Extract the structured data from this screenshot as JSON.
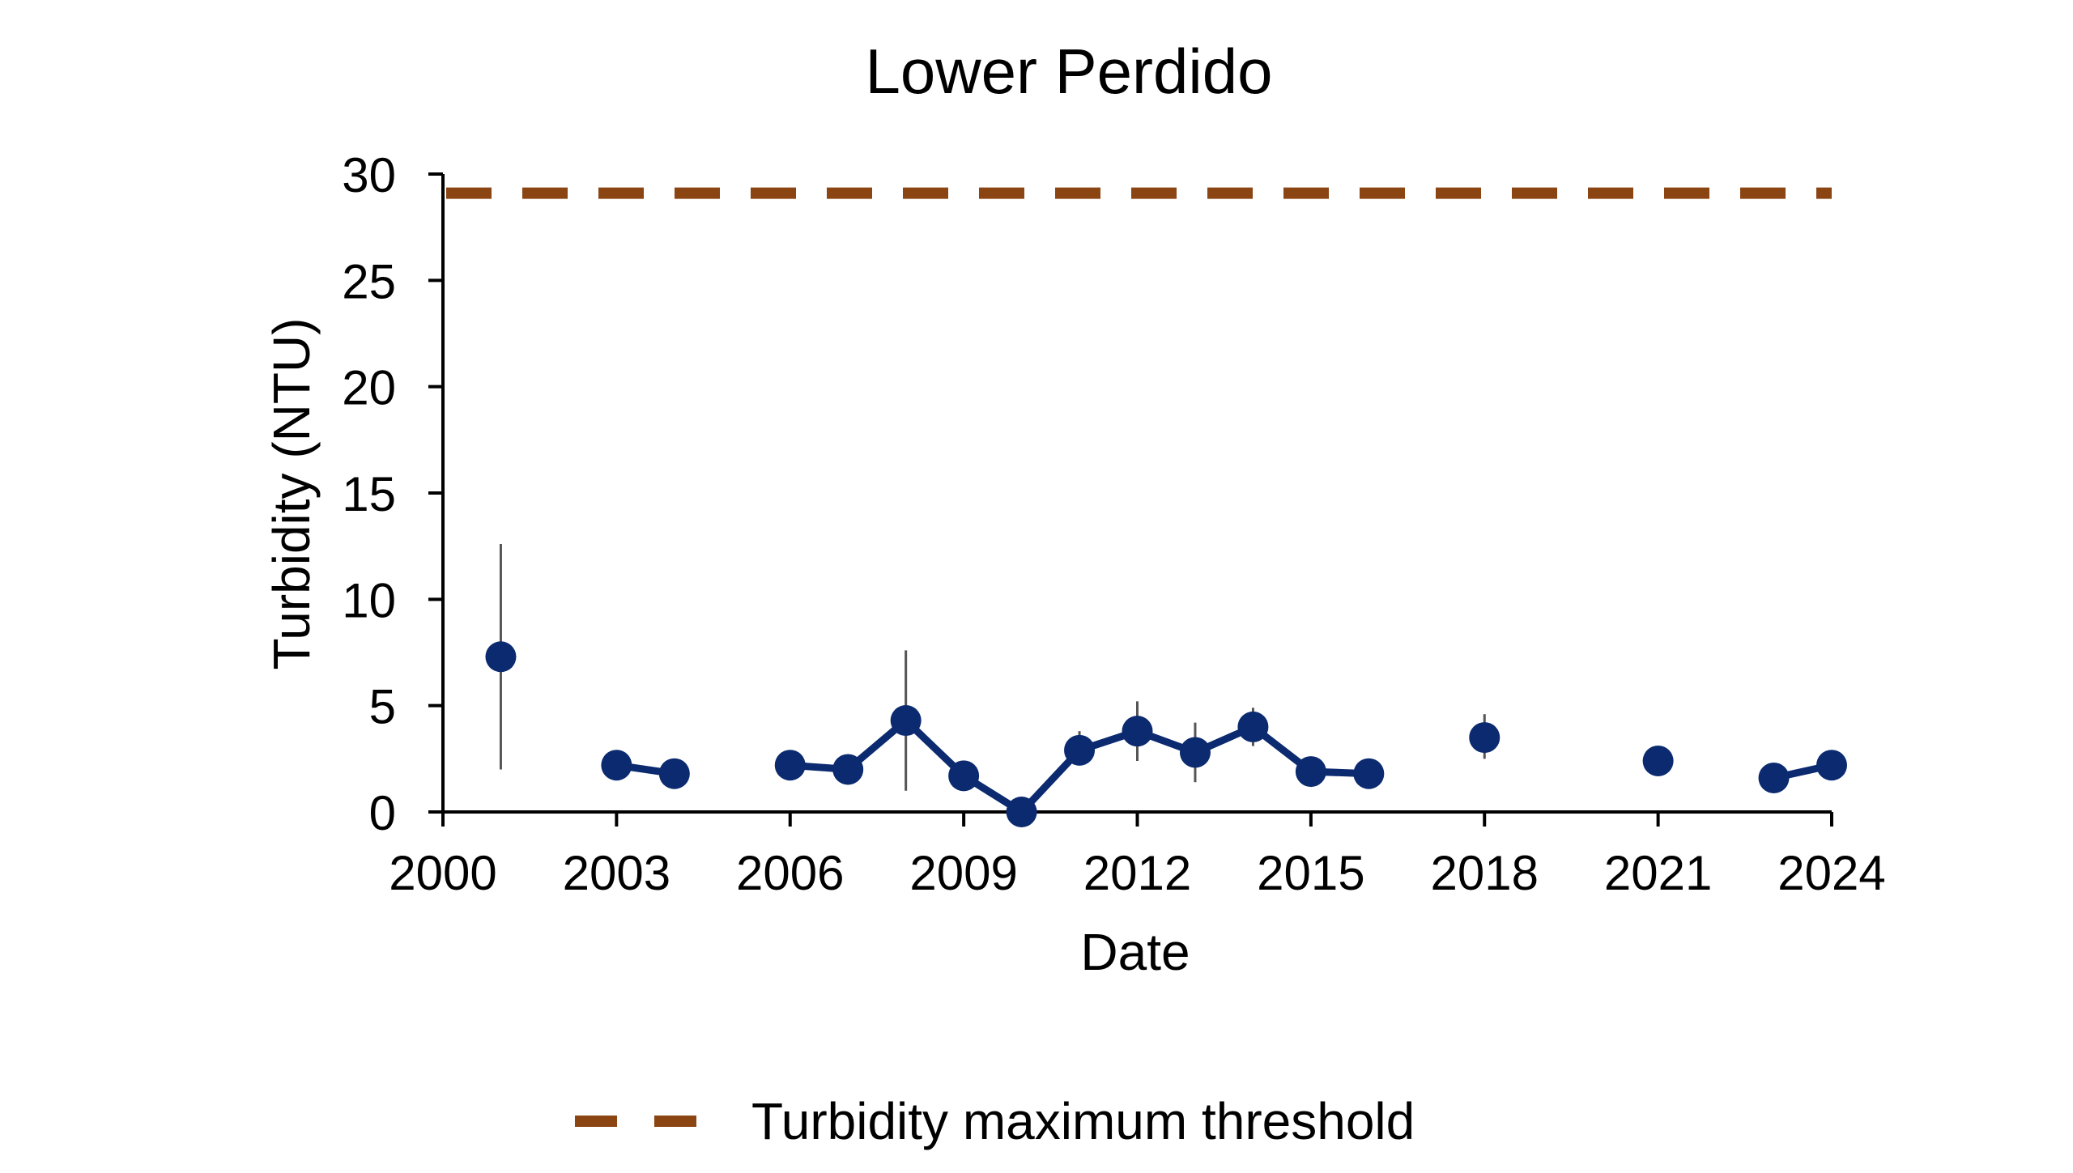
{
  "chart_data": {
    "type": "scatter",
    "title": "Lower Perdido",
    "xlabel": "Date",
    "ylabel": "Turbidity (NTU)",
    "xlim": [
      2000,
      2024
    ],
    "ylim": [
      0,
      30
    ],
    "xticks": [
      2000,
      2003,
      2006,
      2009,
      2012,
      2015,
      2018,
      2021,
      2024
    ],
    "yticks": [
      0,
      5,
      10,
      15,
      20,
      25,
      30
    ],
    "grid": false,
    "legend_position": "bottom",
    "series": [
      {
        "type": "line-markers",
        "color": "#0b2a6f",
        "points": [
          {
            "x": 2001,
            "y": 7.3,
            "err_low": 2.0,
            "err_high": 12.6
          },
          {
            "x": 2003,
            "y": 2.2
          },
          {
            "x": 2004,
            "y": 1.8
          },
          {
            "x": 2006,
            "y": 2.2
          },
          {
            "x": 2007,
            "y": 2.0
          },
          {
            "x": 2008,
            "y": 4.3,
            "err_low": 1.0,
            "err_high": 7.6
          },
          {
            "x": 2009,
            "y": 1.7
          },
          {
            "x": 2010,
            "y": 0.0
          },
          {
            "x": 2011,
            "y": 2.9,
            "err_low": 2.2,
            "err_high": 3.8
          },
          {
            "x": 2012,
            "y": 3.8,
            "err_low": 2.4,
            "err_high": 5.2
          },
          {
            "x": 2013,
            "y": 2.8,
            "err_low": 1.4,
            "err_high": 4.2
          },
          {
            "x": 2014,
            "y": 4.0,
            "err_low": 3.1,
            "err_high": 4.9
          },
          {
            "x": 2015,
            "y": 1.9
          },
          {
            "x": 2016,
            "y": 1.8
          },
          {
            "x": 2018,
            "y": 3.5,
            "err_low": 2.5,
            "err_high": 4.6
          },
          {
            "x": 2021,
            "y": 2.4
          },
          {
            "x": 2023,
            "y": 1.6
          },
          {
            "x": 2024,
            "y": 2.2
          }
        ],
        "segments": [
          [
            2003,
            2004
          ],
          [
            2006,
            2016
          ],
          [
            2023,
            2024
          ]
        ]
      },
      {
        "name": "Turbidity maximum threshold",
        "type": "threshold",
        "color": "#8b4513",
        "value": 29.1
      }
    ],
    "legend": [
      {
        "label": "Turbidity maximum threshold",
        "color": "#8b4513",
        "style": "dashed"
      }
    ]
  }
}
